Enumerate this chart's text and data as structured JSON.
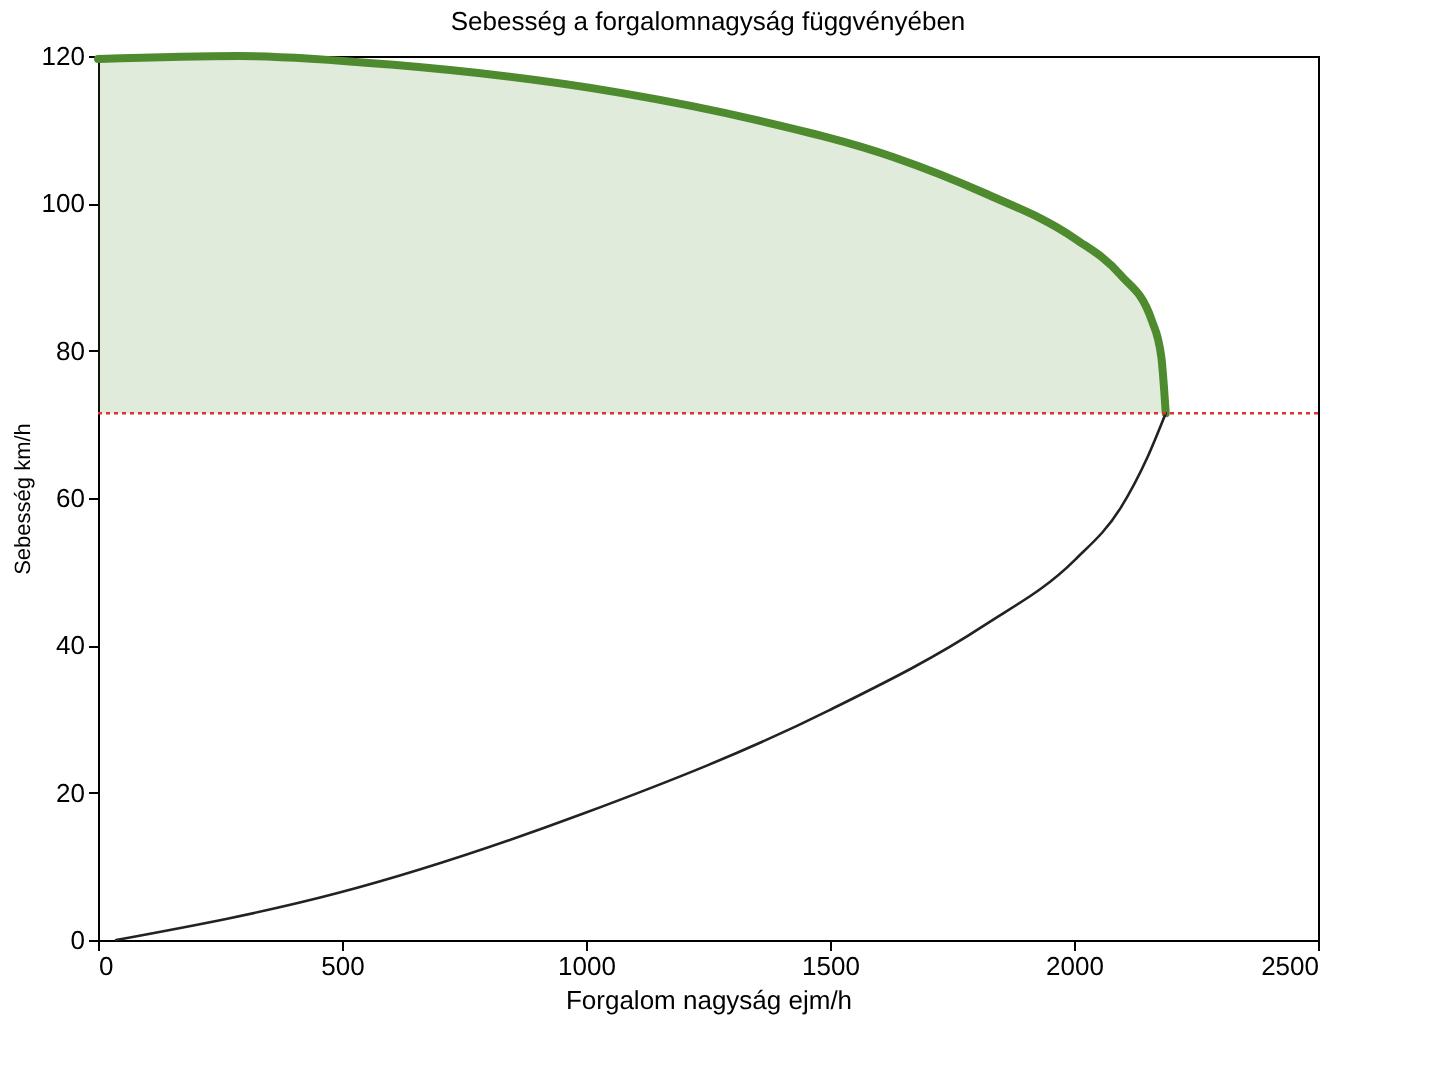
{
  "chart_data": {
    "type": "line",
    "title": "Sebesség a forgalomnagyság függvényében",
    "xlabel": "Forgalom nagyság ejm/h",
    "ylabel": "Sebesség km/h",
    "xlim": [
      0,
      2500
    ],
    "xticks": [
      0,
      500,
      1000,
      1500,
      2000,
      2500
    ],
    "ylim": [
      0,
      120
    ],
    "yticks": [
      0,
      20,
      40,
      60,
      80,
      100,
      120
    ],
    "grid": false,
    "marker": "none",
    "series": [
      {
        "type": "area",
        "color": "#4e8a2e",
        "x": [
          0,
          289,
          605,
          1071,
          1350,
          1629,
          1816,
          2002,
          2095,
          2160,
          2179,
          2188
        ],
        "values": [
          119.6,
          120,
          118.8,
          115,
          111.3,
          106.3,
          101.4,
          95.2,
          90.3,
          84,
          79.1,
          71.5
        ]
      },
      {
        "color": "#222222",
        "x": [
          37,
          493,
          996,
          1499,
          1816,
          2002,
          2095,
          2151,
          2188
        ],
        "values": [
          0,
          6.4,
          17.2,
          31.2,
          42.7,
          51.6,
          58.6,
          65.6,
          71.5
        ]
      }
    ],
    "ref_lines": [
      {
        "axis": "y",
        "value": 71.5,
        "color": "#e03030",
        "line_style": "dotted"
      }
    ]
  }
}
